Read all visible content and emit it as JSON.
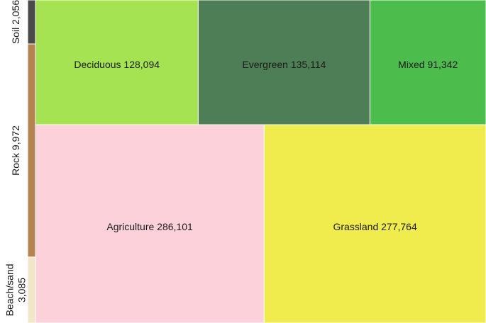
{
  "chart_data": {
    "type": "treemap",
    "title": "",
    "side_strip": [
      {
        "label_lines": [
          "Soil 2,056"
        ],
        "category": "Soil",
        "value": 2056,
        "color": "#4a4a4a"
      },
      {
        "label_lines": [
          "Rock 9,972"
        ],
        "category": "Rock",
        "value": 9972,
        "color": "#b5834f"
      },
      {
        "label_lines": [
          "Beach/sand",
          "3,085"
        ],
        "category": "Beach/sand",
        "value": 3085,
        "color": "#f2e6c9"
      }
    ],
    "top_row": [
      {
        "label": "Deciduous 128,094",
        "category": "Deciduous",
        "value": 128094,
        "color": "#a6e352"
      },
      {
        "label": "Evergreen 135,114",
        "category": "Evergreen",
        "value": 135114,
        "color": "#4e7e55"
      },
      {
        "label": "Mixed 91,342",
        "category": "Mixed",
        "value": 91342,
        "color": "#4cbc4c"
      }
    ],
    "bottom_row": [
      {
        "label": "Agriculture 286,101",
        "category": "Agriculture",
        "value": 286101,
        "color": "#fdd1da"
      },
      {
        "label": "Grassland 277,764",
        "category": "Grassland",
        "value": 277764,
        "color": "#f0ec4d"
      }
    ]
  }
}
